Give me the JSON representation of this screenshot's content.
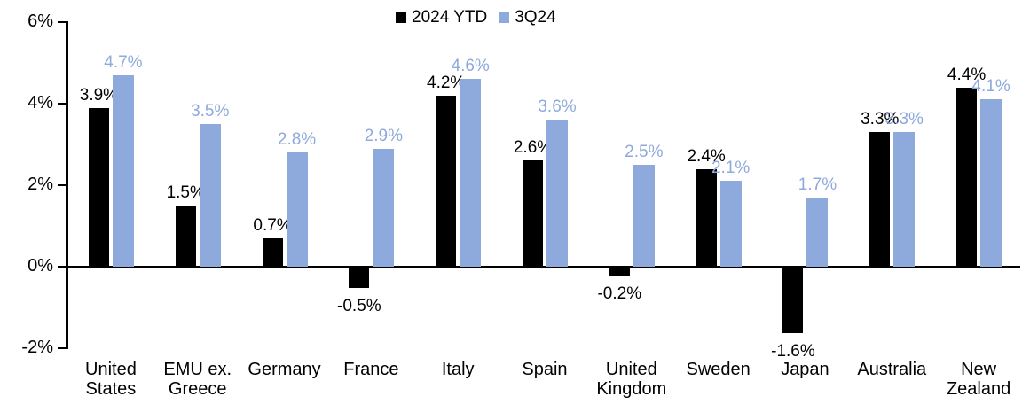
{
  "chart_data": {
    "type": "bar",
    "title": "",
    "categories": [
      "United States",
      "EMU ex. Greece",
      "Germany",
      "France",
      "Italy",
      "Spain",
      "United Kingdom",
      "Sweden",
      "Japan",
      "Australia",
      "New Zealand"
    ],
    "category_display": [
      "United\nStates",
      "EMU ex.\nGreece",
      "Germany",
      "France",
      "Italy",
      "Spain",
      "United\nKingdom",
      "Sweden",
      "Japan",
      "Australia",
      "New\nZealand"
    ],
    "series": [
      {
        "name": "2024 YTD",
        "color": "#000000",
        "values": [
          3.9,
          1.5,
          0.7,
          -0.5,
          4.2,
          2.6,
          -0.2,
          2.4,
          -1.6,
          3.3,
          4.4
        ],
        "labels": [
          "3.9%",
          "1.5%",
          "0.7%",
          "-0.5%",
          "4.2%",
          "2.6%",
          "-0.2%",
          "2.4%",
          "-1.6%",
          "3.3%",
          "4.4%"
        ]
      },
      {
        "name": "3Q24",
        "color": "#8EA9DB",
        "values": [
          4.7,
          3.5,
          2.8,
          2.9,
          4.6,
          3.6,
          2.5,
          2.1,
          1.7,
          3.3,
          4.1
        ],
        "labels": [
          "4.7%",
          "3.5%",
          "2.8%",
          "2.9%",
          "4.6%",
          "3.6%",
          "2.5%",
          "2.1%",
          "1.7%",
          "3.3%",
          "4.1%"
        ]
      }
    ],
    "ylim": [
      -2,
      6
    ],
    "yticks": [
      {
        "value": 6,
        "label": "6%"
      },
      {
        "value": 4,
        "label": "4%"
      },
      {
        "value": 2,
        "label": "2%"
      },
      {
        "value": 0,
        "label": "0%"
      },
      {
        "value": -2,
        "label": "-2%"
      }
    ],
    "grid": false,
    "legend_position": "top-center",
    "xlabel": "",
    "ylabel": ""
  }
}
